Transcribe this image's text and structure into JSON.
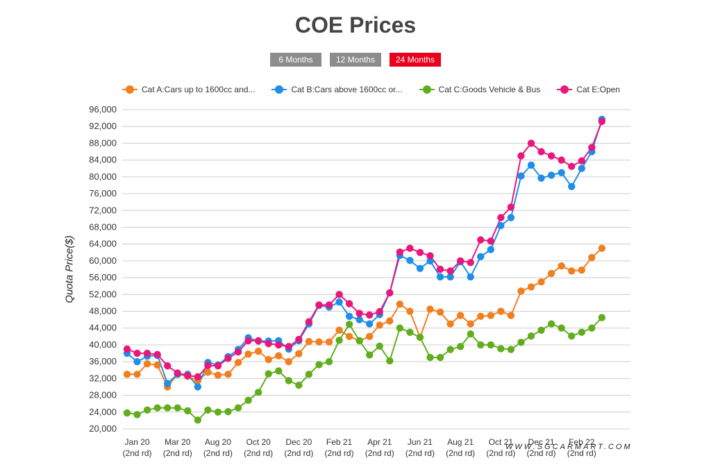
{
  "header": {
    "title": "COE Prices",
    "tabs": [
      {
        "label": "6 Months",
        "active": false
      },
      {
        "label": "12 Months",
        "active": false
      },
      {
        "label": "24 Months",
        "active": true
      }
    ]
  },
  "watermark": "WWW.SGCARMART.COM",
  "colors": {
    "cat_a": "#f07f1f",
    "cat_b": "#1e8ee8",
    "cat_c": "#62ad1f",
    "cat_e": "#e8177c",
    "tab_inactive": "#8c8c8c",
    "tab_active": "#e8001c",
    "grid": "#cccccc"
  },
  "chart_data": {
    "type": "line",
    "title": "COE Prices",
    "ylabel": "Quota Price($)",
    "xlabel": "",
    "ylim": [
      20000,
      96000
    ],
    "ytick_step": 4000,
    "grid": true,
    "legend_position": "top",
    "x_tick_labels": [
      {
        "label": "Jan 20",
        "sub": "(2nd rd)",
        "index": 1
      },
      {
        "label": "Mar 20",
        "sub": "(2nd rd)",
        "index": 5
      },
      {
        "label": "Aug 20",
        "sub": "(2nd rd)",
        "index": 9
      },
      {
        "label": "Oct 20",
        "sub": "(2nd rd)",
        "index": 13
      },
      {
        "label": "Dec 20",
        "sub": "(2nd rd)",
        "index": 17
      },
      {
        "label": "Feb 21",
        "sub": "(2nd rd)",
        "index": 21
      },
      {
        "label": "Apr 21",
        "sub": "(2nd rd)",
        "index": 25
      },
      {
        "label": "Jun 21",
        "sub": "(2nd rd)",
        "index": 29
      },
      {
        "label": "Aug 21",
        "sub": "(2nd rd)",
        "index": 33
      },
      {
        "label": "Oct 21",
        "sub": "(2nd rd)",
        "index": 37
      },
      {
        "label": "Dec 21",
        "sub": "(2nd rd)",
        "index": 41
      },
      {
        "label": "Feb 22",
        "sub": "(2nd rd)",
        "index": 45
      }
    ],
    "series": [
      {
        "name": "Cat A:Cars up to 1600cc and...",
        "values": [
          33000,
          33000,
          35500,
          35200,
          30000,
          33000,
          32500,
          31500,
          33500,
          32800,
          33000,
          35800,
          37800,
          38500,
          36500,
          37400,
          36000,
          37900,
          40800,
          40700,
          40700,
          43500,
          42000,
          41000,
          42000,
          44700,
          45700,
          49700,
          48000,
          41800,
          48500,
          47800,
          45000,
          47000,
          45000,
          46800,
          47000,
          48000,
          47000,
          52800,
          53800,
          55000,
          57000,
          58800,
          57600,
          57800,
          60800,
          63000
        ]
      },
      {
        "name": "Cat B:Cars above 1600cc or...",
        "values": [
          38000,
          36000,
          37300,
          37500,
          30800,
          33000,
          33000,
          30000,
          35800,
          35200,
          37200,
          38900,
          41700,
          40900,
          40900,
          41000,
          39000,
          41000,
          45000,
          49400,
          49000,
          50200,
          46800,
          46000,
          45000,
          47200,
          52400,
          61300,
          60100,
          58200,
          60000,
          56200,
          56200,
          59800,
          56200,
          61000,
          62700,
          68400,
          70300,
          80200,
          82800,
          79700,
          80400,
          81000,
          77700,
          82000,
          86000,
          93700
        ]
      },
      {
        "name": "Cat C:Goods Vehicle & Bus",
        "values": [
          23800,
          23400,
          24500,
          25000,
          25000,
          25000,
          24300,
          22100,
          24500,
          24000,
          24100,
          25000,
          26800,
          28700,
          33100,
          33800,
          31500,
          30400,
          33000,
          35300,
          36000,
          41100,
          44900,
          41000,
          37600,
          39700,
          36200,
          44000,
          43000,
          41800,
          37000,
          37000,
          38900,
          39600,
          42600,
          40000,
          40000,
          39100,
          38900,
          40600,
          42100,
          43500,
          45000,
          44000,
          42100,
          43000,
          44000,
          46500
        ]
      },
      {
        "name": "Cat E:Open",
        "values": [
          39000,
          38000,
          38000,
          37700,
          35000,
          33300,
          32700,
          32400,
          35100,
          35000,
          36800,
          38300,
          41000,
          41000,
          40300,
          40000,
          39600,
          41300,
          45500,
          49500,
          49500,
          52000,
          49800,
          47500,
          47100,
          47900,
          52400,
          62100,
          63000,
          62000,
          61200,
          58000,
          57600,
          60000,
          59600,
          65000,
          64700,
          70300,
          72800,
          85000,
          88000,
          86000,
          85000,
          84000,
          82500,
          83800,
          87000,
          93200
        ]
      }
    ]
  }
}
